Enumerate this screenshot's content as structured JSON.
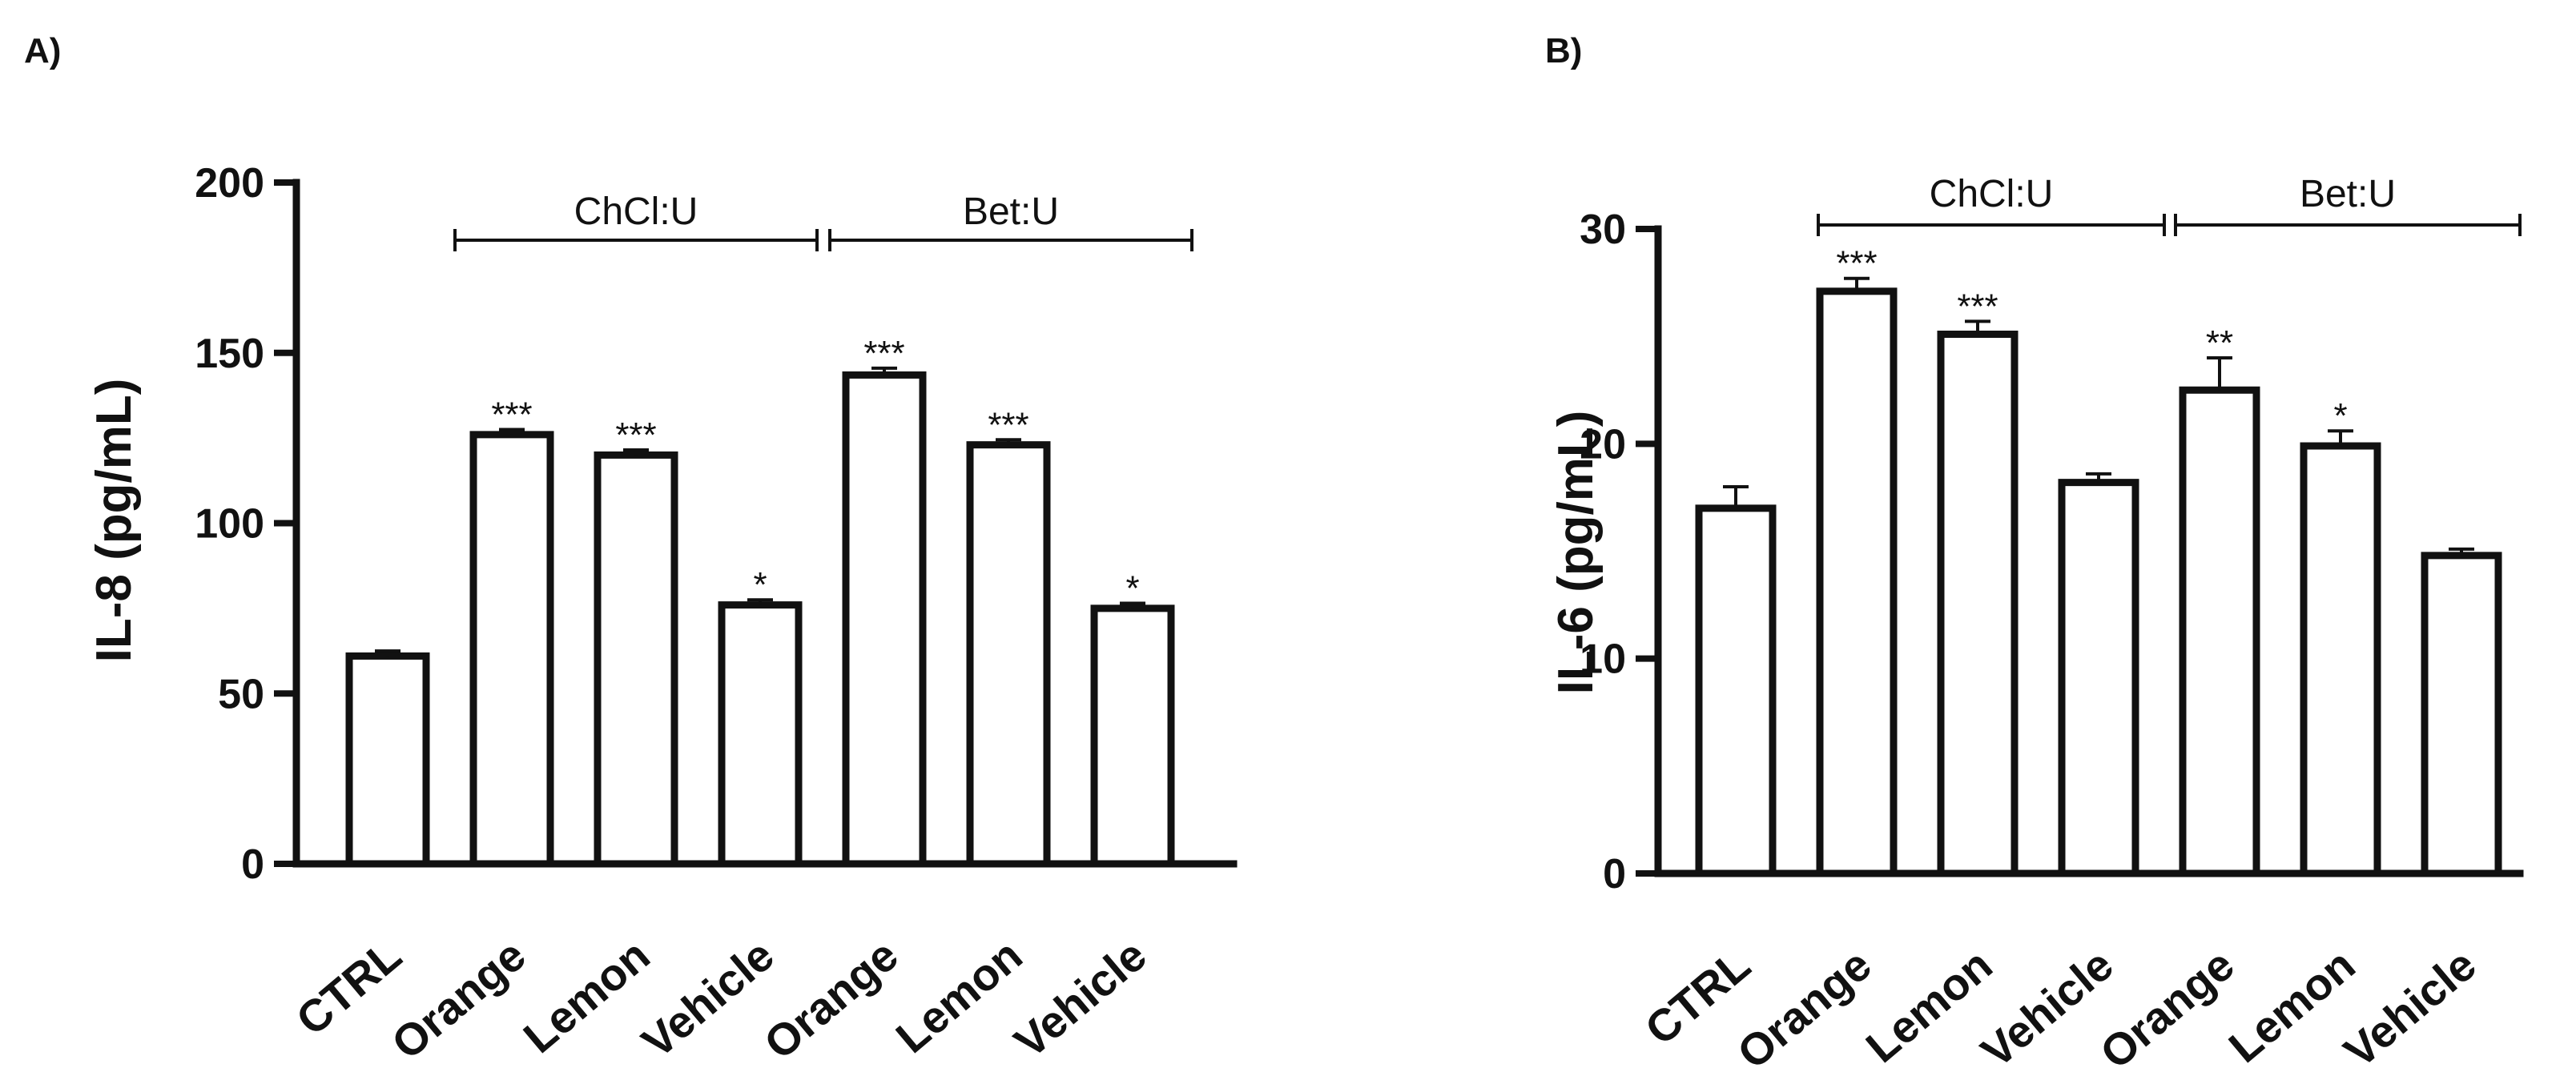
{
  "chart_data": [
    {
      "panel": "A)",
      "type": "bar",
      "ylabel": "IL-8 (pg/mL)",
      "ylim": [
        0,
        200
      ],
      "yticks": [
        0,
        50,
        100,
        150,
        200
      ],
      "categories": [
        "CTRL",
        "Orange",
        "Lemon",
        "Vehicle",
        "Orange",
        "Lemon",
        "Vehicle"
      ],
      "values": [
        61,
        126,
        120,
        76,
        143.5,
        123,
        75
      ],
      "errors": [
        1.5,
        1.5,
        1.5,
        1.5,
        2,
        1.5,
        1.5
      ],
      "significance": [
        "",
        "***",
        "***",
        "*",
        "***",
        "***",
        "*"
      ],
      "groups": [
        {
          "label": "ChCl:U",
          "from": 1,
          "to": 3
        },
        {
          "label": "Bet:U",
          "from": 4,
          "to": 6
        }
      ]
    },
    {
      "panel": "B)",
      "type": "bar",
      "ylabel": "IL-6 (pg/mL)",
      "ylim": [
        0,
        30
      ],
      "yticks": [
        0,
        10,
        20,
        30
      ],
      "categories": [
        "CTRL",
        "Orange",
        "Lemon",
        "Vehicle",
        "Orange",
        "Lemon",
        "Vehicle"
      ],
      "values": [
        17,
        27.1,
        25.1,
        18.2,
        22.5,
        19.9,
        14.8
      ],
      "errors": [
        1.0,
        0.6,
        0.6,
        0.4,
        1.5,
        0.7,
        0.3
      ],
      "significance": [
        "",
        "***",
        "***",
        "",
        "**",
        "*",
        ""
      ],
      "groups": [
        {
          "label": "ChCl:U",
          "from": 1,
          "to": 3
        },
        {
          "label": "Bet:U",
          "from": 4,
          "to": 6
        }
      ]
    }
  ]
}
